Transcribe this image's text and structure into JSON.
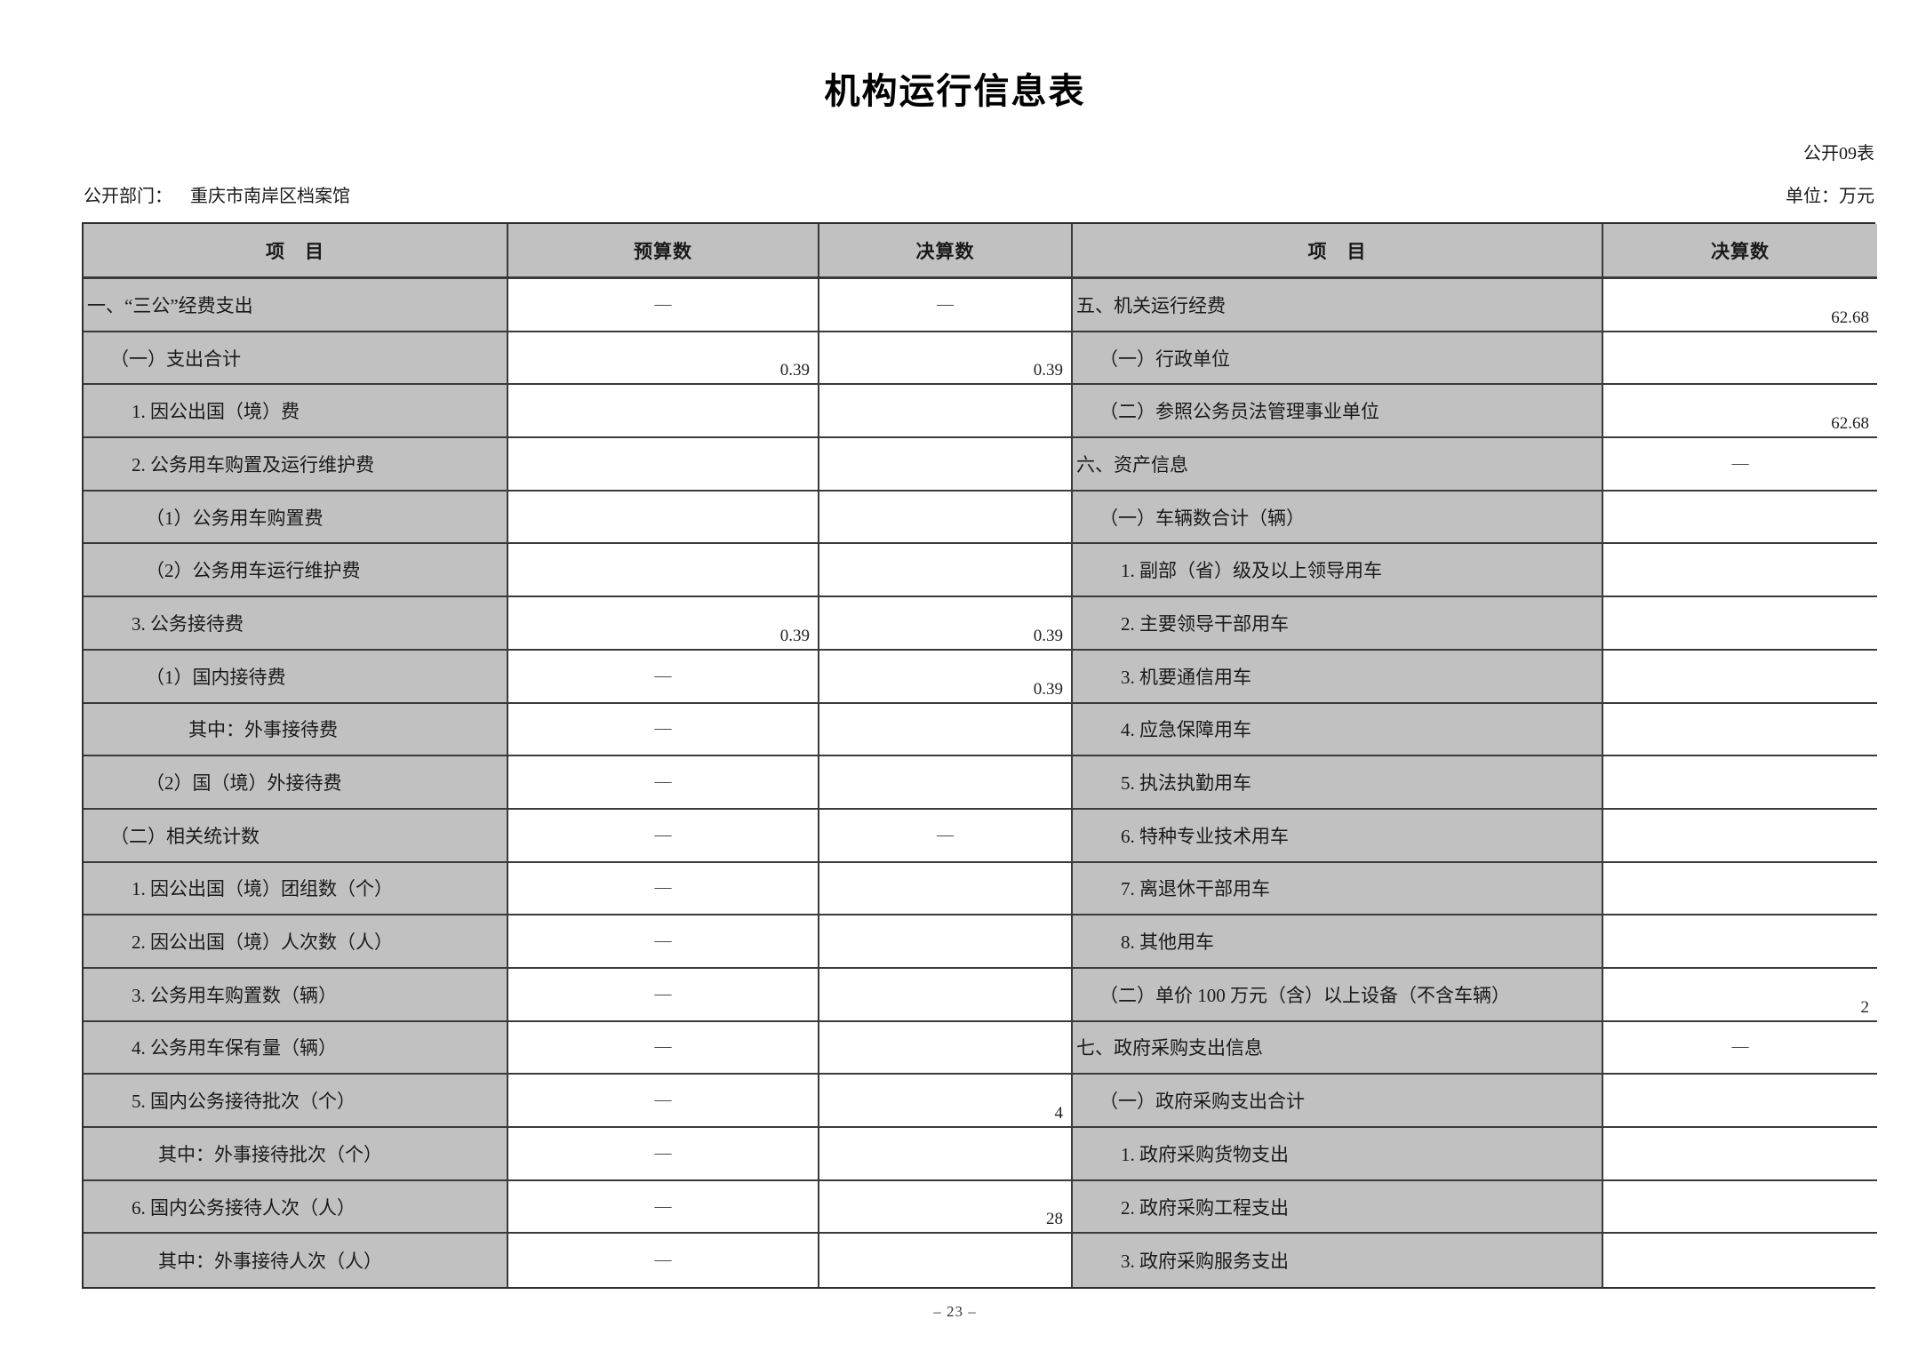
{
  "page": {
    "title": "机构运行信息表",
    "table_code": "公开09表",
    "department_label": "公开部门：",
    "department_value": "重庆市南岸区档案馆",
    "unit_label": "单位：万元",
    "page_number": "– 23 –"
  },
  "colors": {
    "label_cell_gray": "#c1c1c1",
    "border": "#3a3a3a",
    "page_background": "#ffffff"
  },
  "table": {
    "headers": [
      "项　目",
      "预算数",
      "决算数",
      "项　目",
      "决算数"
    ],
    "rows": [
      {
        "left": {
          "label": "一、“三公”经费支出",
          "indent": 0
        },
        "budget": "—",
        "final": "—",
        "right": {
          "label": "五、机关运行经费",
          "indent": 0
        },
        "rfinal": "62.68"
      },
      {
        "left": {
          "label": "（一）支出合计",
          "indent": 1
        },
        "budget": "0.39",
        "final": "0.39",
        "right": {
          "label": "（一）行政单位",
          "indent": 1
        },
        "rfinal": ""
      },
      {
        "left": {
          "label": "1. 因公出国（境）费",
          "indent": 2
        },
        "budget": "",
        "final": "",
        "right": {
          "label": "（二）参照公务员法管理事业单位",
          "indent": 1
        },
        "rfinal": "62.68"
      },
      {
        "left": {
          "label": "2. 公务用车购置及运行维护费",
          "indent": 2
        },
        "budget": "",
        "final": "",
        "right": {
          "label": "六、资产信息",
          "indent": 0
        },
        "rfinal": "—"
      },
      {
        "left": {
          "label": "（1）公务用车购置费",
          "indent": 3
        },
        "budget": "",
        "final": "",
        "right": {
          "label": "（一）车辆数合计（辆）",
          "indent": 1
        },
        "rfinal": ""
      },
      {
        "left": {
          "label": "（2）公务用车运行维护费",
          "indent": 3
        },
        "budget": "",
        "final": "",
        "right": {
          "label": "1. 副部（省）级及以上领导用车",
          "indent": 2
        },
        "rfinal": ""
      },
      {
        "left": {
          "label": "3. 公务接待费",
          "indent": 2
        },
        "budget": "0.39",
        "final": "0.39",
        "right": {
          "label": "2. 主要领导干部用车",
          "indent": 2
        },
        "rfinal": ""
      },
      {
        "left": {
          "label": "（1）国内接待费",
          "indent": 3
        },
        "budget": "—",
        "final": "0.39",
        "right": {
          "label": "3. 机要通信用车",
          "indent": 2
        },
        "rfinal": ""
      },
      {
        "left": {
          "label": "其中：外事接待费",
          "indent": 5
        },
        "budget": "—",
        "final": "",
        "right": {
          "label": "4. 应急保障用车",
          "indent": 2
        },
        "rfinal": ""
      },
      {
        "left": {
          "label": "（2）国（境）外接待费",
          "indent": 3
        },
        "budget": "—",
        "final": "",
        "right": {
          "label": "5. 执法执勤用车",
          "indent": 2
        },
        "rfinal": ""
      },
      {
        "left": {
          "label": "（二）相关统计数",
          "indent": 1
        },
        "budget": "—",
        "final": "—",
        "right": {
          "label": "6. 特种专业技术用车",
          "indent": 2
        },
        "rfinal": ""
      },
      {
        "left": {
          "label": "1. 因公出国（境）团组数（个）",
          "indent": 2
        },
        "budget": "—",
        "final": "",
        "right": {
          "label": "7. 离退休干部用车",
          "indent": 2
        },
        "rfinal": ""
      },
      {
        "left": {
          "label": "2. 因公出国（境）人次数（人）",
          "indent": 2
        },
        "budget": "—",
        "final": "",
        "right": {
          "label": "8. 其他用车",
          "indent": 2
        },
        "rfinal": ""
      },
      {
        "left": {
          "label": "3. 公务用车购置数（辆）",
          "indent": 2
        },
        "budget": "—",
        "final": "",
        "right": {
          "label": "（二）单价 100 万元（含）以上设备（不含车辆）",
          "indent": 1
        },
        "rfinal": "2"
      },
      {
        "left": {
          "label": "4. 公务用车保有量（辆）",
          "indent": 2
        },
        "budget": "—",
        "final": "",
        "right": {
          "label": "七、政府采购支出信息",
          "indent": 0
        },
        "rfinal": "—"
      },
      {
        "left": {
          "label": "5. 国内公务接待批次（个）",
          "indent": 2
        },
        "budget": "—",
        "final": "4",
        "right": {
          "label": "（一）政府采购支出合计",
          "indent": 1
        },
        "rfinal": ""
      },
      {
        "left": {
          "label": "其中：外事接待批次（个）",
          "indent": 4
        },
        "budget": "—",
        "final": "",
        "right": {
          "label": "1. 政府采购货物支出",
          "indent": 2
        },
        "rfinal": ""
      },
      {
        "left": {
          "label": "6. 国内公务接待人次（人）",
          "indent": 2
        },
        "budget": "—",
        "final": "28",
        "right": {
          "label": "2. 政府采购工程支出",
          "indent": 2
        },
        "rfinal": ""
      },
      {
        "left": {
          "label": "其中：外事接待人次（人）",
          "indent": 4
        },
        "budget": "—",
        "final": "",
        "right": {
          "label": "3. 政府采购服务支出",
          "indent": 2
        },
        "rfinal": ""
      }
    ]
  }
}
